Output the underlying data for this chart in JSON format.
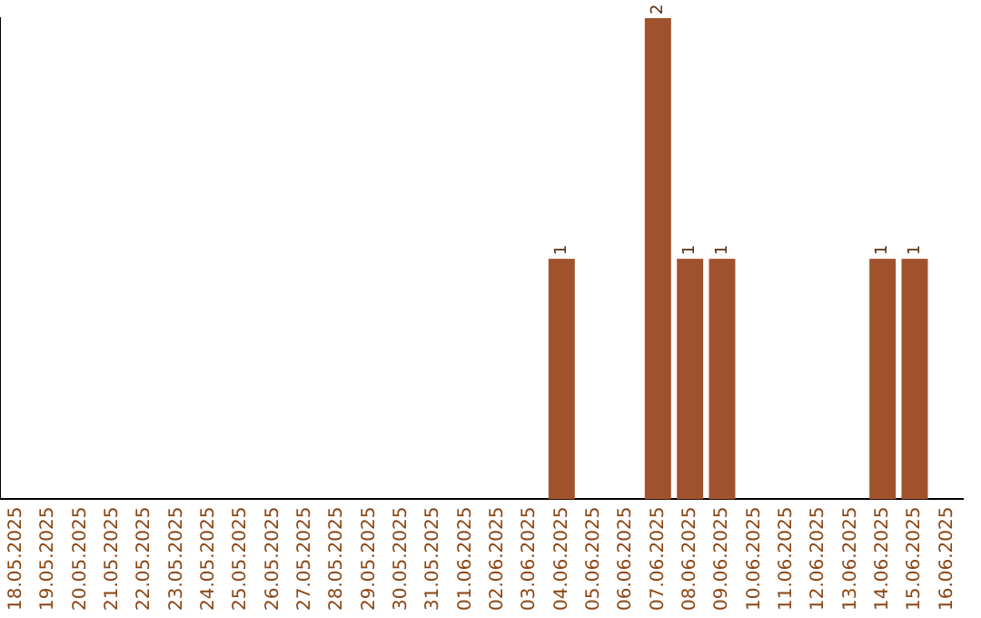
{
  "chart_data": {
    "type": "bar",
    "categories": [
      "18.05.2025",
      "19.05.2025",
      "20.05.2025",
      "21.05.2025",
      "22.05.2025",
      "23.05.2025",
      "24.05.2025",
      "25.05.2025",
      "26.05.2025",
      "27.05.2025",
      "28.05.2025",
      "29.05.2025",
      "30.05.2025",
      "31.05.2025",
      "01.06.2025",
      "02.06.2025",
      "03.06.2025",
      "04.06.2025",
      "05.06.2025",
      "06.06.2025",
      "07.06.2025",
      "08.06.2025",
      "09.06.2025",
      "10.06.2025",
      "11.06.2025",
      "12.06.2025",
      "13.06.2025",
      "14.06.2025",
      "15.06.2025",
      "16.06.2025"
    ],
    "values": [
      null,
      null,
      null,
      null,
      null,
      null,
      null,
      null,
      null,
      null,
      null,
      null,
      null,
      null,
      null,
      null,
      null,
      1,
      null,
      null,
      2,
      1,
      1,
      null,
      null,
      null,
      null,
      1,
      1,
      null
    ],
    "data_labels": true,
    "color": "#a0522d",
    "ylim": [
      0,
      2
    ],
    "tick_labels": "x",
    "grid": false,
    "legend": false
  }
}
